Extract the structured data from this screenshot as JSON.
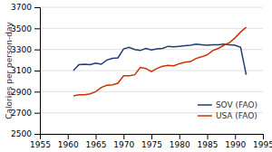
{
  "chart_data": {
    "type": "line",
    "y_label": "Calories per person-day",
    "x": [
      1961,
      1962,
      1963,
      1964,
      1965,
      1966,
      1967,
      1968,
      1969,
      1970,
      1971,
      1972,
      1973,
      1974,
      1975,
      1976,
      1977,
      1978,
      1979,
      1980,
      1981,
      1982,
      1983,
      1984,
      1985,
      1986,
      1987,
      1988,
      1989,
      1990,
      1991,
      1992
    ],
    "series": [
      {
        "name": "SOV (FAO)",
        "color": "#1f3d7a",
        "values": [
          3100,
          3155,
          3160,
          3155,
          3170,
          3160,
          3200,
          3215,
          3220,
          3305,
          3320,
          3300,
          3290,
          3310,
          3295,
          3305,
          3310,
          3330,
          3325,
          3330,
          3335,
          3340,
          3350,
          3345,
          3340,
          3345,
          3345,
          3350,
          3345,
          3340,
          3320,
          3060
        ]
      },
      {
        "name": "USA (FAO)",
        "color": "#cc3300",
        "values": [
          2860,
          2870,
          2870,
          2880,
          2900,
          2940,
          2960,
          2965,
          2980,
          3050,
          3050,
          3060,
          3130,
          3120,
          3090,
          3120,
          3140,
          3150,
          3145,
          3165,
          3180,
          3185,
          3215,
          3230,
          3250,
          3290,
          3310,
          3340,
          3365,
          3410,
          3465,
          3510
        ]
      }
    ],
    "xlim": [
      1955,
      1995
    ],
    "xticks": [
      1955,
      1960,
      1965,
      1970,
      1975,
      1980,
      1985,
      1990,
      1995
    ],
    "ylim": [
      2500,
      3700
    ],
    "yticks": [
      2500,
      2700,
      2900,
      3100,
      3300,
      3500,
      3700
    ],
    "grid": true,
    "legend": "lower right"
  }
}
